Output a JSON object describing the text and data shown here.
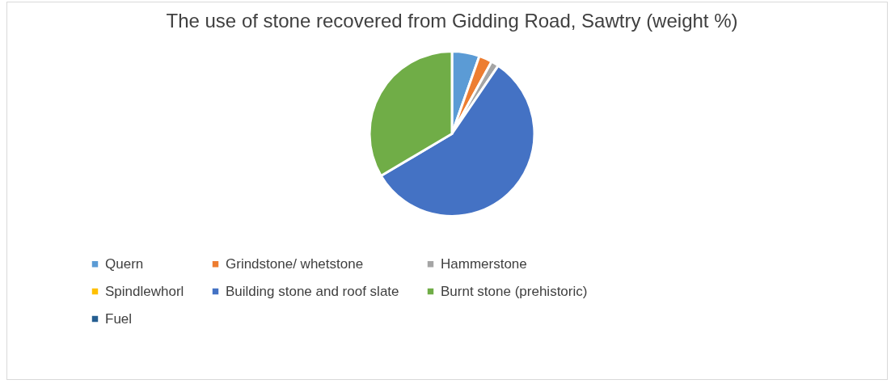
{
  "chart_data": {
    "type": "pie",
    "title": "The use of stone recovered from Gidding Road, Sawtry (weight %)",
    "categories": [
      "Quern",
      "Grindstone/ whetstone",
      "Hammerstone",
      "Spindlewhorl",
      "Building stone and roof slate",
      "Burnt stone (prehistoric)",
      "Fuel"
    ],
    "values": [
      5.4,
      2.6,
      1.5,
      0,
      57.0,
      33.5,
      0
    ],
    "colors": [
      "#5b9bd5",
      "#ed7d31",
      "#a5a5a5",
      "#ffc000",
      "#4472c4",
      "#70ad47",
      "#255e91"
    ],
    "legend": "bottom"
  }
}
